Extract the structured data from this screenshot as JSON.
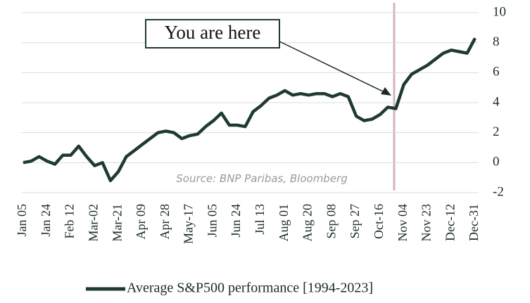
{
  "chart_data": {
    "type": "line",
    "categories": [
      "Jan 05",
      null,
      null,
      "Jan 24",
      null,
      null,
      "Feb 12",
      null,
      null,
      "Mar-02",
      null,
      null,
      "Mar-21",
      null,
      null,
      "Apr 09",
      null,
      null,
      "Apr 28",
      null,
      null,
      "May-17",
      null,
      null,
      "Jun 05",
      null,
      null,
      "Jun 24",
      null,
      null,
      "Jul 13",
      null,
      null,
      "Aug 01",
      null,
      null,
      "Aug 20",
      null,
      null,
      "Sep 08",
      null,
      null,
      "Sep 27",
      null,
      null,
      "Oct-16",
      null,
      null,
      "Nov 04",
      null,
      null,
      "Nov 23",
      null,
      null,
      "Dec-12",
      null,
      null,
      "Dec-31"
    ],
    "series": [
      {
        "name": "Average S&P500 performance [1994-2023]",
        "color": "#1f3a33",
        "values": [
          0,
          0.1,
          0.4,
          0.1,
          -0.1,
          0.5,
          0.5,
          1.1,
          0.4,
          -0.2,
          0,
          -1.2,
          -0.6,
          0.4,
          0.8,
          1.2,
          1.6,
          2.0,
          2.1,
          2.0,
          1.6,
          1.8,
          1.9,
          2.4,
          2.8,
          3.3,
          2.5,
          2.5,
          2.4,
          3.4,
          3.8,
          4.3,
          4.5,
          4.8,
          4.5,
          4.6,
          4.5,
          4.6,
          4.6,
          4.4,
          4.6,
          4.4,
          3.1,
          2.8,
          2.9,
          3.2,
          3.7,
          3.6,
          5.2,
          5.9,
          6.2,
          6.5,
          6.9,
          7.3,
          7.5,
          7.4,
          7.3,
          8.3
        ]
      }
    ],
    "ylim": [
      -2,
      10
    ],
    "yticks": [
      -2,
      0,
      2,
      4,
      6,
      8,
      10
    ],
    "grid": true,
    "annotation": "You are here",
    "source": "Source: BNP Paribas, Bloomberg"
  }
}
